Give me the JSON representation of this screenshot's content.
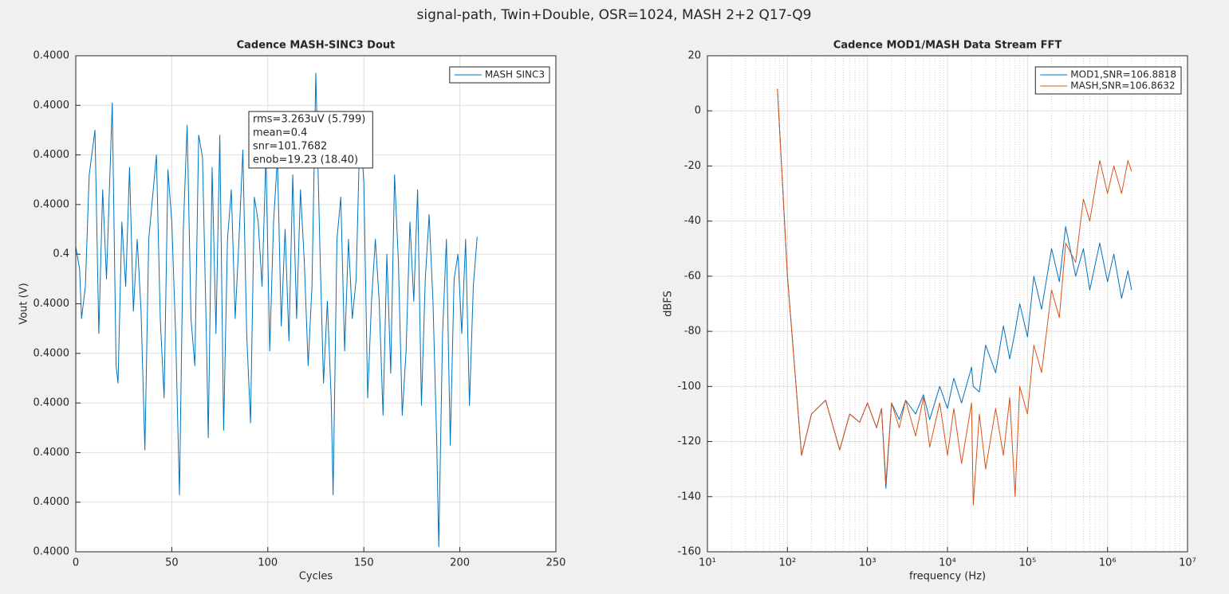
{
  "title": "signal-path, Twin+Double, OSR=1024, MASH 2+2 Q17-Q9",
  "chart_data": [
    {
      "type": "line",
      "title": "Cadence MASH-SINC3 Dout",
      "x_label": "Cycles",
      "y_label": "Vout (V)",
      "x": [
        0,
        2,
        3,
        5,
        7,
        10,
        12,
        14,
        16,
        19,
        21,
        22,
        24,
        26,
        28,
        30,
        32,
        34,
        36,
        38,
        40,
        42,
        44,
        46,
        48,
        50,
        52,
        54,
        56,
        58,
        60,
        62,
        64,
        66,
        68,
        69,
        71,
        73,
        75,
        77,
        79,
        81,
        83,
        85,
        87,
        89,
        91,
        93,
        95,
        97,
        99,
        101,
        103,
        105,
        107,
        109,
        111,
        113,
        115,
        117,
        119,
        121,
        123,
        125,
        127,
        129,
        131,
        133,
        134,
        136,
        138,
        140,
        142,
        144,
        146,
        148,
        150,
        152,
        154,
        156,
        158,
        160,
        162,
        164,
        166,
        168,
        170,
        172,
        174,
        176,
        178,
        180,
        182,
        184,
        186,
        188,
        189,
        191,
        193,
        195,
        197,
        199,
        201,
        203,
        205,
        207,
        209
      ],
      "series": [
        {
          "name": "MASH SINC3",
          "color": "#0072bd",
          "values": [
            0.4000003,
            0.3999994,
            0.3999974,
            0.3999987,
            0.4000032,
            0.400005,
            0.3999968,
            0.4000026,
            0.399999,
            0.4000061,
            0.3999955,
            0.3999948,
            0.4000013,
            0.3999987,
            0.4000035,
            0.3999977,
            0.4000006,
            0.3999977,
            0.3999921,
            0.4000006,
            0.4000023,
            0.400004,
            0.3999974,
            0.3999942,
            0.4000034,
            0.4000013,
            0.3999968,
            0.3999903,
            0.400001,
            0.4000052,
            0.3999974,
            0.3999955,
            0.4000048,
            0.4000039,
            0.3999968,
            0.3999926,
            0.4000035,
            0.3999968,
            0.4000048,
            0.3999929,
            0.4000006,
            0.4000026,
            0.3999974,
            0.4000006,
            0.4000042,
            0.3999968,
            0.3999932,
            0.4000023,
            0.4000013,
            0.3999987,
            0.4000039,
            0.3999961,
            0.4000013,
            0.4000039,
            0.3999971,
            0.400001,
            0.3999965,
            0.4000032,
            0.3999974,
            0.4000026,
            0.3999997,
            0.3999955,
            0.3999987,
            0.4000073,
            0.4000006,
            0.3999948,
            0.3999981,
            0.3999942,
            0.3999903,
            0.4000006,
            0.4000023,
            0.3999961,
            0.4000006,
            0.3999974,
            0.399999,
            0.4000052,
            0.4000029,
            0.3999942,
            0.3999981,
            0.4000006,
            0.3999981,
            0.3999935,
            0.4,
            0.3999952,
            0.4000032,
            0.3999997,
            0.3999935,
            0.3999961,
            0.4000013,
            0.3999981,
            0.4000026,
            0.3999939,
            0.399999,
            0.4000016,
            0.3999981,
            0.3999923,
            0.3999882,
            0.3999968,
            0.4000006,
            0.3999923,
            0.399999,
            0.4,
            0.3999968,
            0.4000006,
            0.3999939,
            0.3999987,
            0.4000007
          ]
        }
      ],
      "xlim": [
        0,
        250
      ],
      "xticks": [
        0,
        50,
        100,
        150,
        200,
        250
      ],
      "ylim": [
        0.399988,
        0.400008
      ],
      "yticks": [
        {
          "value": 0.399988,
          "label": "0.4000"
        },
        {
          "value": 0.39999,
          "label": "0.4000"
        },
        {
          "value": 0.399992,
          "label": "0.4000"
        },
        {
          "value": 0.399994,
          "label": "0.4000"
        },
        {
          "value": 0.399996,
          "label": "0.4000"
        },
        {
          "value": 0.399998,
          "label": "0.4000"
        },
        0.4,
        {
          "value": 0.400002,
          "label": "0.4000"
        },
        {
          "value": 0.400004,
          "label": "0.4000"
        },
        {
          "value": 0.400006,
          "label": "0.4000"
        },
        {
          "value": 0.400008,
          "label": "0.4000"
        }
      ],
      "grid": true,
      "legend": "top-right",
      "annotation": [
        "rms=3.263uV (5.799)",
        "mean=0.4",
        "snr=101.7682",
        "enob=19.23 (18.40)"
      ]
    },
    {
      "type": "line",
      "title": "Cadence MOD1/MASH Data Stream FFT",
      "x_label": "frequency (Hz)",
      "y_label": "dBFS",
      "x_scale": "log",
      "x": [
        75,
        100,
        150,
        200,
        300,
        450,
        600,
        800,
        1000,
        1300,
        1500,
        1700,
        2000,
        2500,
        3000,
        4000,
        5000,
        6000,
        8000,
        10000,
        12000,
        15000,
        20000,
        21000,
        25000,
        30000,
        40000,
        50000,
        60000,
        70000,
        80000,
        100000,
        120000,
        150000,
        200000,
        250000,
        300000,
        400000,
        500000,
        600000,
        800000,
        1000000,
        1200000,
        1500000,
        1800000,
        2000000
      ],
      "series": [
        {
          "name": "MOD1,SNR=106.8818",
          "color": "#0072bd",
          "values": [
            8,
            -60,
            -125,
            -110,
            -105,
            -123,
            -110,
            -113,
            -106,
            -115,
            -108,
            -137,
            -106,
            -112,
            -105,
            -110,
            -103,
            -112,
            -100,
            -108,
            -97,
            -106,
            -93,
            -100,
            -102,
            -85,
            -95,
            -78,
            -90,
            -80,
            -70,
            -82,
            -60,
            -72,
            -50,
            -62,
            -42,
            -60,
            -50,
            -65,
            -48,
            -62,
            -52,
            -68,
            -58,
            -65
          ]
        },
        {
          "name": "MASH,SNR=106.8632",
          "color": "#d95319",
          "values": [
            8,
            -60,
            -125,
            -110,
            -105,
            -123,
            -110,
            -113,
            -106,
            -115,
            -108,
            -135,
            -106,
            -115,
            -105,
            -118,
            -104,
            -122,
            -106,
            -125,
            -108,
            -128,
            -106,
            -143,
            -110,
            -130,
            -108,
            -125,
            -104,
            -140,
            -100,
            -110,
            -85,
            -95,
            -65,
            -75,
            -48,
            -55,
            -32,
            -40,
            -18,
            -30,
            -20,
            -30,
            -18,
            -22
          ]
        }
      ],
      "xlim": [
        10,
        10000000
      ],
      "xticks": [
        {
          "value": 10,
          "label": "10¹"
        },
        {
          "value": 100,
          "label": "10²"
        },
        {
          "value": 1000,
          "label": "10³"
        },
        {
          "value": 10000,
          "label": "10⁴"
        },
        {
          "value": 100000,
          "label": "10⁵"
        },
        {
          "value": 1000000,
          "label": "10⁶"
        },
        {
          "value": 10000000,
          "label": "10⁷"
        }
      ],
      "ylim": [
        -160,
        20
      ],
      "yticks": [
        -160,
        -140,
        -120,
        -100,
        -80,
        -60,
        -40,
        -20,
        0,
        20
      ],
      "grid": true,
      "minor_grid": true,
      "legend": "top-right"
    }
  ]
}
